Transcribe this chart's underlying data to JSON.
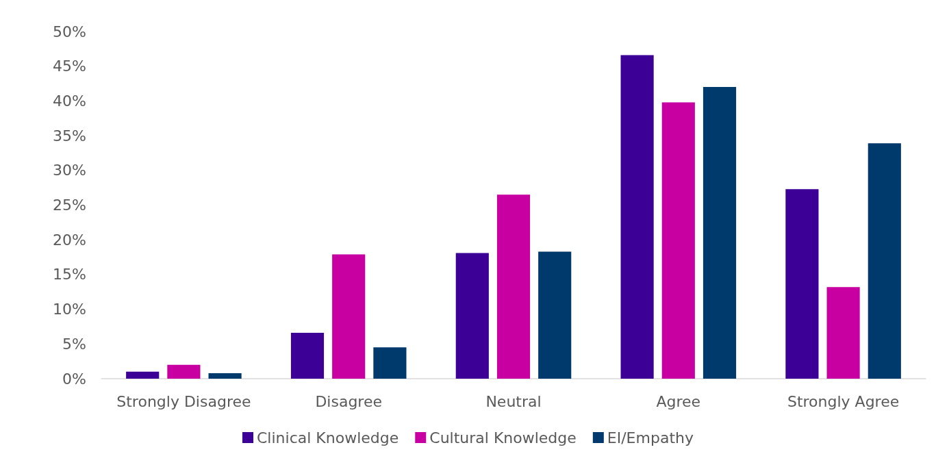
{
  "chart_data": {
    "type": "bar",
    "categories": [
      "Strongly Disagree",
      "Disagree",
      "Neutral",
      "Agree",
      "Strongly Agree"
    ],
    "series": [
      {
        "name": "Clinical Knowledge",
        "color": "#3d0097",
        "values": [
          1.0,
          6.6,
          18.1,
          46.6,
          27.3
        ]
      },
      {
        "name": "Cultural Knowledge",
        "color": "#c800a1",
        "values": [
          2.0,
          17.9,
          26.5,
          39.8,
          13.2
        ]
      },
      {
        "name": "EI/Empathy",
        "color": "#003a6d",
        "values": [
          0.8,
          4.5,
          18.3,
          42.0,
          33.9
        ]
      }
    ],
    "ylim": [
      0,
      50
    ],
    "yticks": [
      {
        "value": 0,
        "label": "0%"
      },
      {
        "value": 5,
        "label": "5%"
      },
      {
        "value": 10,
        "label": "10%"
      },
      {
        "value": 15,
        "label": "15%"
      },
      {
        "value": 20,
        "label": "20%"
      },
      {
        "value": 25,
        "label": "25%"
      },
      {
        "value": 30,
        "label": "30%"
      },
      {
        "value": 35,
        "label": "35%"
      },
      {
        "value": 40,
        "label": "40%"
      },
      {
        "value": 45,
        "label": "45%"
      },
      {
        "value": 50,
        "label": "50%"
      }
    ],
    "grid": false,
    "legend": "bottom"
  }
}
